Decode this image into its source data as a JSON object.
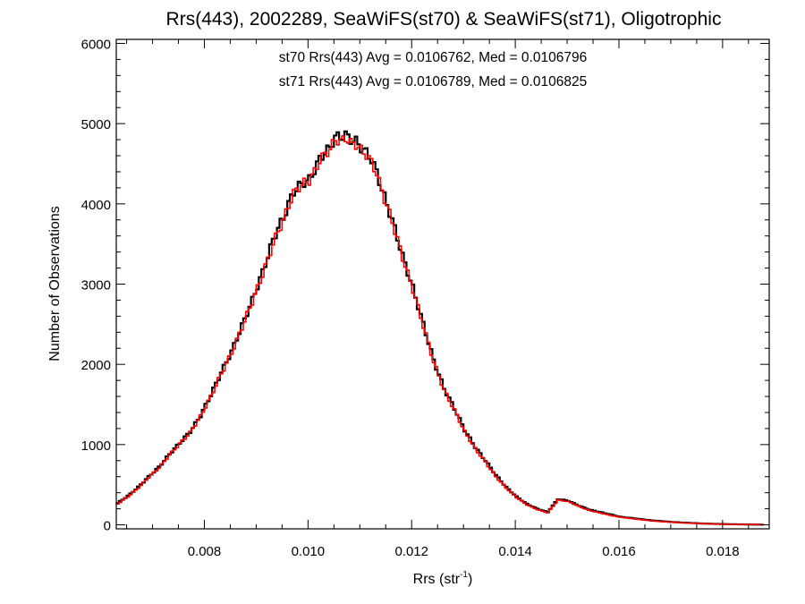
{
  "chart_data": {
    "type": "line",
    "step": true,
    "title": "Rrs(443), 2002289, SeaWiFS(st70) & SeaWiFS(st71), Oligotrophic",
    "xlabel": "Rrs (str",
    "xlabel_sup": "-1",
    "xlabel_close": ")",
    "ylabel": "Number of Observations",
    "xlim": [
      0.0063,
      0.0189
    ],
    "ylim": [
      -50,
      6050
    ],
    "x_ticks": [
      0.008,
      0.01,
      0.012,
      0.014,
      0.016,
      0.018
    ],
    "x_tick_labels": [
      "0.008",
      "0.010",
      "0.012",
      "0.014",
      "0.016",
      "0.018"
    ],
    "y_ticks": [
      0,
      1000,
      2000,
      3000,
      4000,
      5000,
      6000
    ],
    "y_tick_labels": [
      "0",
      "1000",
      "2000",
      "3000",
      "4000",
      "5000",
      "6000"
    ],
    "annotations": [
      {
        "text": "st70 Rrs(443) Avg = 0.0106762, Med = 0.0106796",
        "color": "#000000"
      },
      {
        "text": "st71 Rrs(443) Avg = 0.0106789, Med = 0.0106825",
        "color": "#ff0000"
      }
    ],
    "bin_width": 5e-05,
    "series": [
      {
        "color": "#000000",
        "x": [
          0.0063,
          0.0065,
          0.0067,
          0.0069,
          0.0071,
          0.0073,
          0.0075,
          0.0077,
          0.0079,
          0.0081,
          0.0083,
          0.0085,
          0.0087,
          0.0089,
          0.0091,
          0.0093,
          0.0094,
          0.0095,
          0.0096,
          0.0097,
          0.0098,
          0.0099,
          0.01,
          0.0101,
          0.0102,
          0.0103,
          0.0104,
          0.0105,
          0.0106,
          0.0107,
          0.0108,
          0.0109,
          0.011,
          0.0111,
          0.0112,
          0.0113,
          0.0114,
          0.0116,
          0.0118,
          0.012,
          0.0122,
          0.0124,
          0.0126,
          0.0128,
          0.013,
          0.0132,
          0.0134,
          0.0136,
          0.0138,
          0.014,
          0.0142,
          0.0144,
          0.0146,
          0.0148,
          0.015,
          0.0152,
          0.0154,
          0.0156,
          0.0158,
          0.016,
          0.0162,
          0.0164,
          0.0166,
          0.0168,
          0.017,
          0.0172,
          0.0174,
          0.0176,
          0.0178,
          0.018,
          0.0182,
          0.0184,
          0.0186,
          0.0188
        ],
        "y": [
          270,
          360,
          470,
          600,
          720,
          880,
          1020,
          1160,
          1360,
          1620,
          1900,
          2160,
          2480,
          2800,
          3150,
          3550,
          3700,
          3820,
          4000,
          4150,
          4220,
          4270,
          4300,
          4420,
          4560,
          4640,
          4700,
          4840,
          4830,
          4860,
          4800,
          4780,
          4700,
          4640,
          4550,
          4400,
          4180,
          3800,
          3350,
          2950,
          2500,
          2050,
          1700,
          1450,
          1180,
          970,
          800,
          620,
          470,
          350,
          260,
          200,
          160,
          320,
          300,
          240,
          190,
          160,
          130,
          100,
          85,
          70,
          55,
          45,
          35,
          28,
          22,
          16,
          12,
          9,
          7,
          5,
          3,
          2
        ]
      },
      {
        "color": "#ff0000",
        "x": [
          0.0063,
          0.0065,
          0.0067,
          0.0069,
          0.0071,
          0.0073,
          0.0075,
          0.0077,
          0.0079,
          0.0081,
          0.0083,
          0.0085,
          0.0087,
          0.0089,
          0.0091,
          0.0093,
          0.0094,
          0.0095,
          0.0096,
          0.0097,
          0.0098,
          0.0099,
          0.01,
          0.0101,
          0.0102,
          0.0103,
          0.0104,
          0.0105,
          0.0106,
          0.0107,
          0.0108,
          0.0109,
          0.011,
          0.0111,
          0.0112,
          0.0113,
          0.0114,
          0.0116,
          0.0118,
          0.012,
          0.0122,
          0.0124,
          0.0126,
          0.0128,
          0.013,
          0.0132,
          0.0134,
          0.0136,
          0.0138,
          0.014,
          0.0142,
          0.0144,
          0.0146,
          0.0148,
          0.015,
          0.0152,
          0.0154,
          0.0156,
          0.0158,
          0.016,
          0.0162,
          0.0164,
          0.0166,
          0.0168,
          0.017,
          0.0172,
          0.0174,
          0.0176,
          0.0178,
          0.018,
          0.0182,
          0.0184,
          0.0186,
          0.0188
        ],
        "y": [
          260,
          350,
          460,
          590,
          710,
          870,
          1010,
          1150,
          1350,
          1600,
          1880,
          2140,
          2460,
          2780,
          3120,
          3500,
          3660,
          3790,
          3980,
          4130,
          4210,
          4260,
          4290,
          4400,
          4540,
          4620,
          4680,
          4800,
          4780,
          4820,
          4760,
          4740,
          4670,
          4610,
          4520,
          4380,
          4160,
          3780,
          3330,
          2930,
          2480,
          2030,
          1680,
          1430,
          1160,
          950,
          780,
          600,
          460,
          340,
          250,
          190,
          150,
          310,
          290,
          230,
          180,
          150,
          120,
          95,
          80,
          65,
          50,
          40,
          32,
          25,
          20,
          15,
          11,
          8,
          6,
          4,
          3,
          2
        ]
      }
    ]
  }
}
